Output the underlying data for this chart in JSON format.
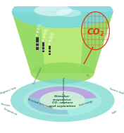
{
  "bg_color": "#ffffff",
  "funnel_green": "#8ed858",
  "funnel_light_green": "#c8f080",
  "funnel_cyan": "#7ad8e0",
  "outer_ring_color": "#7ad8d0",
  "mid_ring_color": "#a8ece4",
  "wedge_orange": "#f0b878",
  "wedge_blue": "#88c8e8",
  "wedge_purple": "#c0a0e0",
  "wedge_green": "#a8e890",
  "center_color": "#d0f0d8",
  "co2_color": "#d84010",
  "stack_color": "#383838",
  "text_color": "#206858",
  "label_color": "#207868",
  "center_text": [
    "Stimulus-",
    "responsive",
    "CO₂ capture",
    "and separation"
  ],
  "outer_labels": [
    [
      "Temperature",
      155
    ],
    [
      "Light",
      25
    ],
    [
      "Electric field",
      -20
    ],
    [
      "pH",
      -65
    ],
    [
      "Guest molecule",
      -115
    ],
    [
      "Magnetic field",
      -160
    ],
    [
      "Pressure",
      170
    ]
  ],
  "mid_labels": [
    [
      "Structural deformation",
      160,
      0.62
    ],
    [
      "Heat energy",
      18,
      0.62
    ],
    [
      "Interaction regulation",
      -90,
      0.68
    ]
  ]
}
